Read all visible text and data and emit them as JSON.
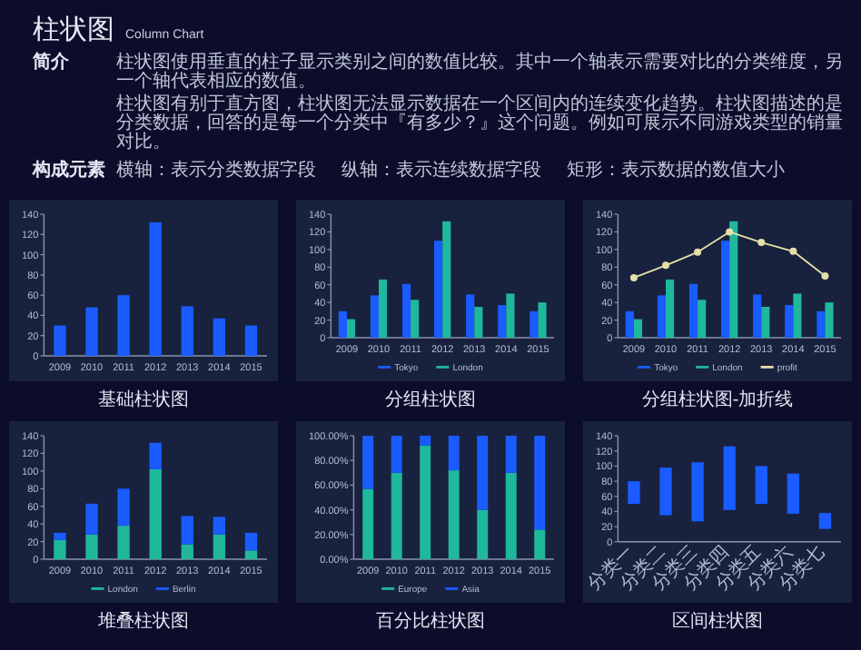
{
  "chart_data": [
    {
      "type": "other",
      "title": "柱状图",
      "subtitle": "Column Chart",
      "annotations": [
        "简介",
        "柱状图使用垂直的柱子显示类别之间的数值比较。其中一个轴表示需要对比的分类维度，另一个轴代表相应的数值。",
        "柱状图有别于直方图，柱状图无法显示数据在一个区间内的连续变化趋势。柱状图描述的是分类数据，回答的是每一个分类中『有多少？』这个问题。例如可展示不同游戏类型的销量对比。",
        "构成元素",
        "横轴：表示分类数据字段",
        "纵轴：表示连续数据字段",
        "矩形：表示数据的数值大小"
      ]
    },
    {
      "type": "bar",
      "title": "基础柱状图",
      "categories": [
        "2009",
        "2010",
        "2011",
        "2012",
        "2013",
        "2014",
        "2015"
      ],
      "color": "#1a5cff",
      "values": [
        30,
        48,
        60,
        132,
        49,
        37,
        30
      ],
      "ylim": [
        0,
        140
      ],
      "yticks": [
        0,
        20,
        40,
        60,
        80,
        100,
        120,
        140
      ]
    },
    {
      "type": "bar",
      "title": "分组柱状图",
      "categories": [
        "2009",
        "2010",
        "2011",
        "2012",
        "2013",
        "2014",
        "2015"
      ],
      "legend": "bottom",
      "series": [
        {
          "name": "Tokyo",
          "color": "#1a5cff",
          "values": [
            30,
            48,
            61,
            110,
            49,
            37,
            30
          ]
        },
        {
          "name": "London",
          "color": "#1fb89c",
          "values": [
            21,
            66,
            43,
            132,
            35,
            50,
            40
          ]
        }
      ],
      "ylim": [
        0,
        140
      ],
      "yticks": [
        0,
        20,
        40,
        60,
        80,
        100,
        120,
        140
      ]
    },
    {
      "type": "bar",
      "title": "分组柱状图-加折线",
      "categories": [
        "2009",
        "2010",
        "2011",
        "2012",
        "2013",
        "2014",
        "2015"
      ],
      "legend": "bottom",
      "marker": "circle",
      "series": [
        {
          "name": "Tokyo",
          "color": "#1a5cff",
          "values": [
            30,
            48,
            61,
            110,
            49,
            37,
            30
          ]
        },
        {
          "name": "London",
          "color": "#1fb89c",
          "values": [
            21,
            66,
            43,
            132,
            35,
            50,
            40
          ]
        },
        {
          "name": "profit",
          "type": "line",
          "color": "#e4e0a8",
          "values": [
            68,
            82,
            97,
            120,
            108,
            98,
            70
          ]
        }
      ],
      "ylim": [
        0,
        140
      ],
      "yticks": [
        0,
        20,
        40,
        60,
        80,
        100,
        120,
        140
      ]
    },
    {
      "type": "bar",
      "title": "堆叠柱状图",
      "categories": [
        "2009",
        "2010",
        "2011",
        "2012",
        "2013",
        "2014",
        "2015"
      ],
      "legend": "bottom",
      "stacked": true,
      "series": [
        {
          "name": "London",
          "color": "#1fb89c",
          "values": [
            22,
            28,
            38,
            102,
            17,
            28,
            10
          ]
        },
        {
          "name": "Berlin",
          "color": "#1a5cff",
          "values": [
            8,
            35,
            42,
            30,
            32,
            20,
            20
          ]
        }
      ],
      "ylim": [
        0,
        140
      ],
      "yticks": [
        0,
        20,
        40,
        60,
        80,
        100,
        120,
        140
      ]
    },
    {
      "type": "bar",
      "title": "百分比柱状图",
      "categories": [
        "2009",
        "2010",
        "2011",
        "2012",
        "2013",
        "2014",
        "2015"
      ],
      "legend": "bottom",
      "stacked": true,
      "series": [
        {
          "name": "Europe",
          "color": "#1fb89c",
          "values": [
            57,
            70,
            92,
            72,
            40,
            70,
            24
          ]
        },
        {
          "name": "Asia",
          "color": "#1a5cff",
          "values": [
            43,
            30,
            8,
            28,
            60,
            30,
            76
          ]
        }
      ],
      "ylim": [
        0,
        100
      ],
      "yticks": [
        {
          "value": 0,
          "label": "0.00%"
        },
        {
          "value": 20,
          "label": "20.00%"
        },
        {
          "value": 40,
          "label": "40.00%"
        },
        {
          "value": 60,
          "label": "60.00%"
        },
        {
          "value": 80,
          "label": "80.00%"
        },
        {
          "value": 100,
          "label": "100.00%"
        }
      ]
    },
    {
      "type": "bar",
      "title": "区间柱状图",
      "categories": [
        "分类一",
        "分类二",
        "分类三",
        "分类四",
        "分类五",
        "分类六",
        "分类七"
      ],
      "color": "#1a5cff",
      "base": [
        50,
        35,
        27,
        42,
        50,
        37,
        17
      ],
      "values": [
        30,
        63,
        78,
        84,
        50,
        53,
        21
      ],
      "ylim": [
        0,
        140
      ],
      "yticks": [
        0,
        20,
        40,
        60,
        80,
        100,
        120,
        140
      ]
    }
  ]
}
